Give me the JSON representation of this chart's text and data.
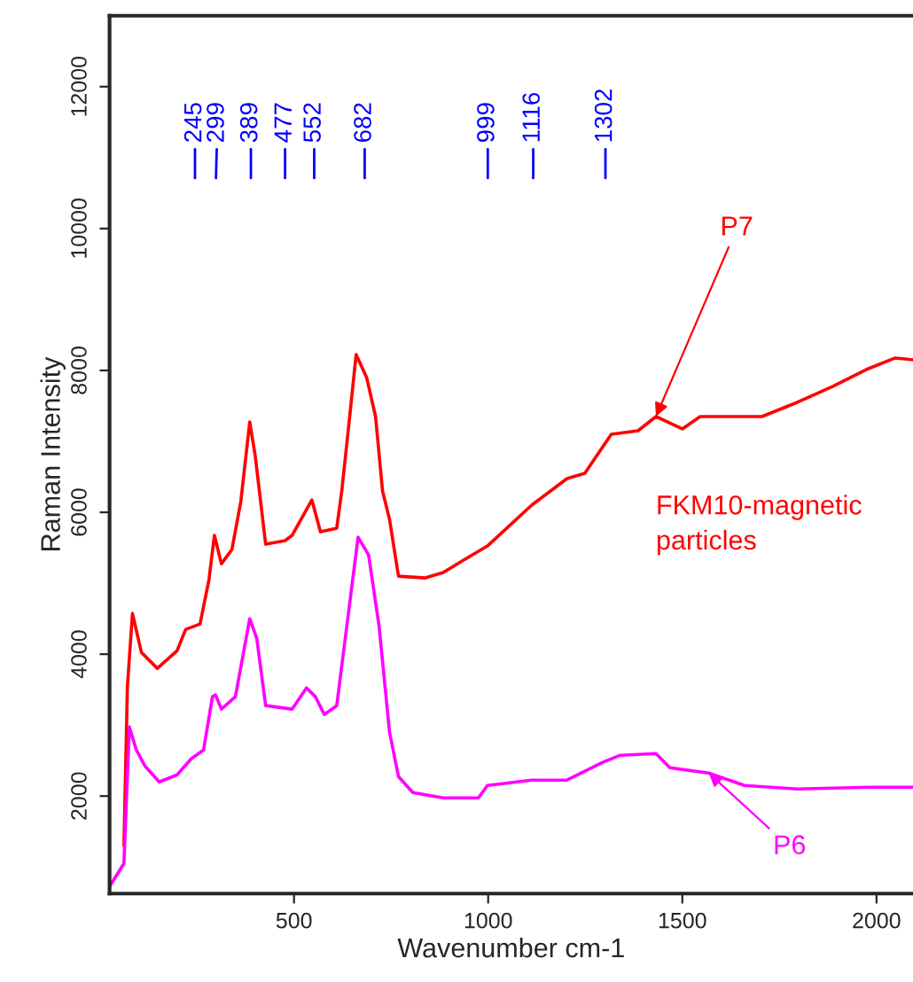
{
  "chart_data": {
    "type": "line",
    "xlabel": "Wavenumber cm-1",
    "ylabel": "Raman Intensity",
    "xlim": [
      25,
      2094
    ],
    "ylim": [
      625,
      13000
    ],
    "xticks": [
      500,
      1000,
      1500,
      2000
    ],
    "yticks": [
      2000,
      4000,
      6000,
      8000,
      10000,
      12000
    ],
    "grid": false,
    "legend": false,
    "marker": "none",
    "line_style": "solid",
    "series": [
      {
        "color": "#ff0000",
        "x": [
          62,
          71,
          84,
          107,
          148,
          199,
          221,
          258,
          281,
          295,
          313,
          340,
          363,
          386,
          400,
          427,
          477,
          495,
          546,
          568,
          610,
          623,
          641,
          660,
          687,
          710,
          728,
          746,
          769,
          838,
          884,
          929,
          998,
          1112,
          1203,
          1249,
          1317,
          1386,
          1432,
          1500,
          1546,
          1705,
          1796,
          1888,
          1979,
          2048,
          2094
        ],
        "values": [
          1300,
          3550,
          4575,
          4025,
          3800,
          4050,
          4350,
          4425,
          5050,
          5675,
          5275,
          5475,
          6150,
          7275,
          6800,
          5550,
          5600,
          5675,
          6175,
          5725,
          5775,
          6300,
          7225,
          8225,
          7900,
          7350,
          6300,
          5900,
          5100,
          5075,
          5150,
          5300,
          5525,
          6100,
          6475,
          6550,
          7100,
          7150,
          7350,
          7175,
          7350,
          7350,
          7550,
          7775,
          8025,
          8175,
          8150
        ]
      },
      {
        "color": "#ff00ff",
        "x": [
          25,
          62,
          76,
          94,
          116,
          153,
          199,
          235,
          267,
          290,
          298,
          313,
          349,
          386,
          404,
          427,
          495,
          532,
          555,
          578,
          610,
          632,
          665,
          692,
          719,
          746,
          769,
          806,
          884,
          975,
          998,
          1112,
          1203,
          1295,
          1340,
          1432,
          1468,
          1568,
          1660,
          1796,
          1979,
          2094
        ],
        "values": [
          725,
          1050,
          2975,
          2650,
          2425,
          2200,
          2300,
          2525,
          2650,
          3400,
          3425,
          3225,
          3400,
          4500,
          4225,
          3275,
          3225,
          3525,
          3400,
          3150,
          3275,
          4225,
          5650,
          5400,
          4400,
          2900,
          2275,
          2050,
          1975,
          1975,
          2150,
          2225,
          2225,
          2475,
          2575,
          2600,
          2400,
          2325,
          2150,
          2100,
          2125,
          2125
        ]
      }
    ],
    "annotations": [
      {
        "text": "245",
        "x": 245
      },
      {
        "text": "299",
        "x": 299
      },
      {
        "text": "389",
        "x": 389
      },
      {
        "text": "477",
        "x": 477
      },
      {
        "text": "552",
        "x": 552
      },
      {
        "text": "682",
        "x": 682
      },
      {
        "text": "999",
        "x": 999
      },
      {
        "text": "1116",
        "x": 1116
      },
      {
        "text": "1302",
        "x": 1302
      },
      {
        "text": "P7",
        "x": 1432,
        "y": 7350
      },
      {
        "text": "P6",
        "x": 1568,
        "y": 2325
      },
      "FKM10-magnetic\nparticles"
    ]
  }
}
